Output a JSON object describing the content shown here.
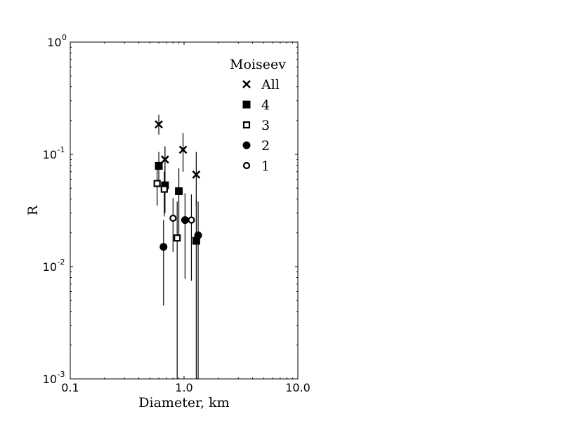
{
  "chart_data": {
    "type": "scatter",
    "xlabel": "Diameter, km",
    "ylabel": "R",
    "xscale": "log",
    "yscale": "log",
    "xlim": [
      0.1,
      10.0
    ],
    "ylim": [
      0.001,
      1.0
    ],
    "x_ticks": [
      {
        "value": 0.1,
        "label": "0.1"
      },
      {
        "value": 1.0,
        "label": "1.0"
      },
      {
        "value": 10.0,
        "label": "10.0"
      }
    ],
    "y_ticks": [
      {
        "value": 0.001,
        "base": "10",
        "exp": "-3"
      },
      {
        "value": 0.01,
        "base": "10",
        "exp": "-2"
      },
      {
        "value": 0.1,
        "base": "10",
        "exp": "-1"
      },
      {
        "value": 1.0,
        "base": "10",
        "exp": "0"
      }
    ],
    "legend": {
      "title": "Moiseev",
      "position": "upper-right"
    },
    "series": [
      {
        "name": "All",
        "marker": "x",
        "points": [
          {
            "x": 0.6,
            "y": 0.185,
            "ylo": 0.15,
            "yhi": 0.225
          },
          {
            "x": 0.68,
            "y": 0.09,
            "ylo": 0.065,
            "yhi": 0.118
          },
          {
            "x": 0.98,
            "y": 0.11,
            "ylo": 0.07,
            "yhi": 0.155
          },
          {
            "x": 1.28,
            "y": 0.066,
            "ylo": 0.035,
            "yhi": 0.105
          }
        ]
      },
      {
        "name": "4",
        "marker": "filled-square",
        "points": [
          {
            "x": 0.6,
            "y": 0.079,
            "ylo": 0.055,
            "yhi": 0.105
          },
          {
            "x": 0.68,
            "y": 0.053,
            "ylo": 0.03,
            "yhi": 0.078
          },
          {
            "x": 0.9,
            "y": 0.047,
            "ylo": 0.018,
            "yhi": 0.075
          },
          {
            "x": 1.28,
            "y": 0.017,
            "ylo": 0.0009,
            "yhi": 0.04
          }
        ]
      },
      {
        "name": "3",
        "marker": "open-square",
        "points": [
          {
            "x": 0.58,
            "y": 0.055,
            "ylo": 0.035,
            "yhi": 0.075
          },
          {
            "x": 0.67,
            "y": 0.049,
            "ylo": 0.028,
            "yhi": 0.07
          },
          {
            "x": 0.87,
            "y": 0.018,
            "ylo": 0.0009,
            "yhi": 0.038
          }
        ]
      },
      {
        "name": "2",
        "marker": "filled-circle",
        "points": [
          {
            "x": 0.66,
            "y": 0.015,
            "ylo": 0.0045,
            "yhi": 0.026
          },
          {
            "x": 1.02,
            "y": 0.026,
            "ylo": 0.0078,
            "yhi": 0.045
          },
          {
            "x": 1.33,
            "y": 0.019,
            "ylo": 0.0009,
            "yhi": 0.038
          }
        ]
      },
      {
        "name": "1",
        "marker": "open-circle",
        "points": [
          {
            "x": 0.8,
            "y": 0.027,
            "ylo": 0.0135,
            "yhi": 0.041
          },
          {
            "x": 1.16,
            "y": 0.026,
            "ylo": 0.0075,
            "yhi": 0.044
          }
        ]
      }
    ]
  }
}
